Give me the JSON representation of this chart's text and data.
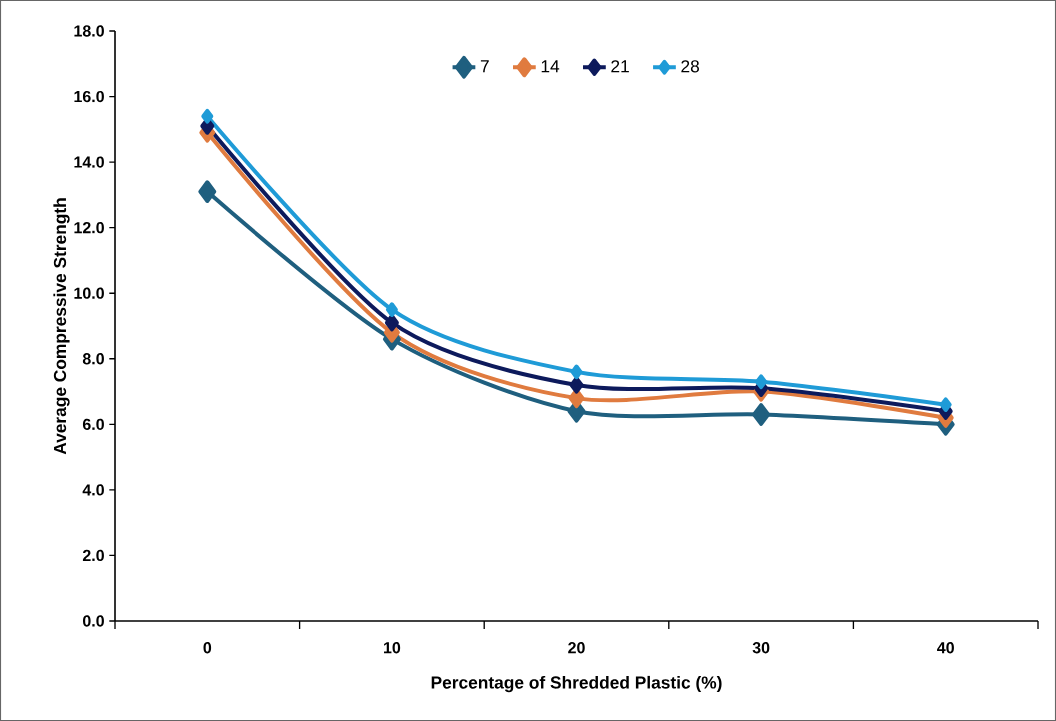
{
  "chart_data": {
    "type": "line",
    "xlabel": "Percentage of Shredded  Plastic (%)",
    "ylabel": "Average Compressive Strength",
    "categories": [
      "0",
      "10",
      "20",
      "30",
      "40"
    ],
    "series": [
      {
        "name": "7",
        "color": "#1f5f7f",
        "values": [
          13.1,
          8.6,
          6.4,
          6.3,
          6.0
        ]
      },
      {
        "name": "14",
        "color": "#e07b3f",
        "values": [
          14.9,
          8.8,
          6.8,
          7.0,
          6.2
        ]
      },
      {
        "name": "21",
        "color": "#0d1a5c",
        "values": [
          15.1,
          9.1,
          7.2,
          7.1,
          6.4
        ]
      },
      {
        "name": "28",
        "color": "#1f9bd7",
        "values": [
          15.4,
          9.5,
          7.6,
          7.3,
          6.6
        ]
      }
    ],
    "ylim": [
      0,
      18
    ],
    "yticks": [
      {
        "value": 0,
        "label": "0.0"
      },
      {
        "value": 2,
        "label": "2.0"
      },
      {
        "value": 4,
        "label": "4.0"
      },
      {
        "value": 6,
        "label": "6.0"
      },
      {
        "value": 8,
        "label": "8.0"
      },
      {
        "value": 10,
        "label": "10.0"
      },
      {
        "value": 12,
        "label": "12.0"
      },
      {
        "value": 14,
        "label": "14.0"
      },
      {
        "value": 16,
        "label": "16.0"
      },
      {
        "value": 18,
        "label": "18.0"
      }
    ],
    "grid": false,
    "legend": "top",
    "marker": "diamond",
    "line_style": "solid"
  }
}
